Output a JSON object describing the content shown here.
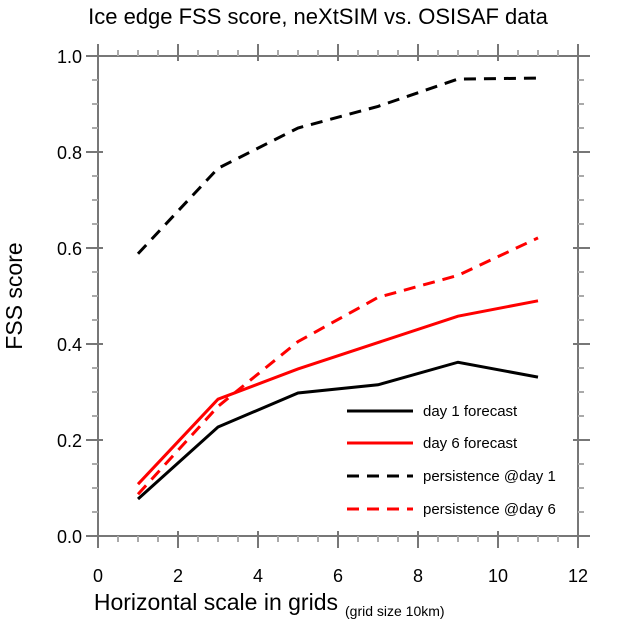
{
  "chart_data": {
    "type": "line",
    "title": "Ice edge FSS score, neXtSIM vs. OSISAF data",
    "xlabel": "Horizontal scale in grids",
    "xlabel_note": "(grid size 10km)",
    "ylabel": "FSS score",
    "xlim": [
      0,
      12
    ],
    "ylim": [
      0,
      1.0
    ],
    "xticks": [
      0,
      2,
      4,
      6,
      8,
      10,
      12
    ],
    "xtick_labels": [
      "0",
      "2",
      "4",
      "6",
      "8",
      "10",
      "12"
    ],
    "xminor_step": 0.5,
    "yticks": [
      0.0,
      0.2,
      0.4,
      0.6,
      0.8,
      1.0
    ],
    "ytick_labels": [
      "0.0",
      "0.2",
      "0.4",
      "0.6",
      "0.8",
      "1.0"
    ],
    "yminor_step": 0.05,
    "grid": false,
    "legend_position": "bottom-right",
    "x": [
      1,
      3,
      5,
      7,
      9,
      11
    ],
    "series": [
      {
        "name": "day 1 forecast",
        "color": "#000000",
        "dashed": false,
        "values": [
          0.077,
          0.227,
          0.298,
          0.315,
          0.362,
          0.331
        ]
      },
      {
        "name": "day 6 forecast",
        "color": "#ff0000",
        "dashed": false,
        "values": [
          0.108,
          0.285,
          0.348,
          0.403,
          0.458,
          0.49
        ]
      },
      {
        "name": "persistence @day 1",
        "color": "#000000",
        "dashed": true,
        "values": [
          0.588,
          0.766,
          0.85,
          0.895,
          0.952,
          0.954
        ]
      },
      {
        "name": "persistence @day 6",
        "color": "#ff0000",
        "dashed": true,
        "values": [
          0.087,
          0.27,
          0.405,
          0.497,
          0.543,
          0.621
        ]
      }
    ]
  }
}
